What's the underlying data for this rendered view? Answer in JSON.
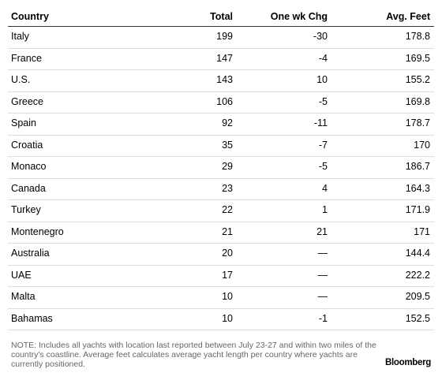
{
  "table": {
    "header": [
      "Country",
      "Total",
      "One wk Chg",
      "Avg. Feet"
    ],
    "rows": [
      [
        "Italy",
        "199",
        "-30",
        "178.8"
      ],
      [
        "France",
        "147",
        "-4",
        "169.5"
      ],
      [
        "U.S.",
        "143",
        "10",
        "155.2"
      ],
      [
        "Greece",
        "106",
        "-5",
        "169.8"
      ],
      [
        "Spain",
        "92",
        "-11",
        "178.7"
      ],
      [
        "Croatia",
        "35",
        "-7",
        "170"
      ],
      [
        "Monaco",
        "29",
        "-5",
        "186.7"
      ],
      [
        "Canada",
        "23",
        "4",
        "164.3"
      ],
      [
        "Turkey",
        "22",
        "1",
        "171.9"
      ],
      [
        "Montenegro",
        "21",
        "21",
        "171"
      ],
      [
        "Australia",
        "20",
        "—",
        "144.4"
      ],
      [
        "UAE",
        "17",
        "—",
        "222.2"
      ],
      [
        "Malta",
        "10",
        "—",
        "209.5"
      ],
      [
        "Bahamas",
        "10",
        "-1",
        "152.5"
      ]
    ]
  },
  "footer": {
    "note": "NOTE: Includes all yachts with location last reported between July 23-27 and within two miles of the country's coastline. Average feet calculates average yacht length per country where yachts are currently positioned.",
    "source": "Bloomberg"
  }
}
